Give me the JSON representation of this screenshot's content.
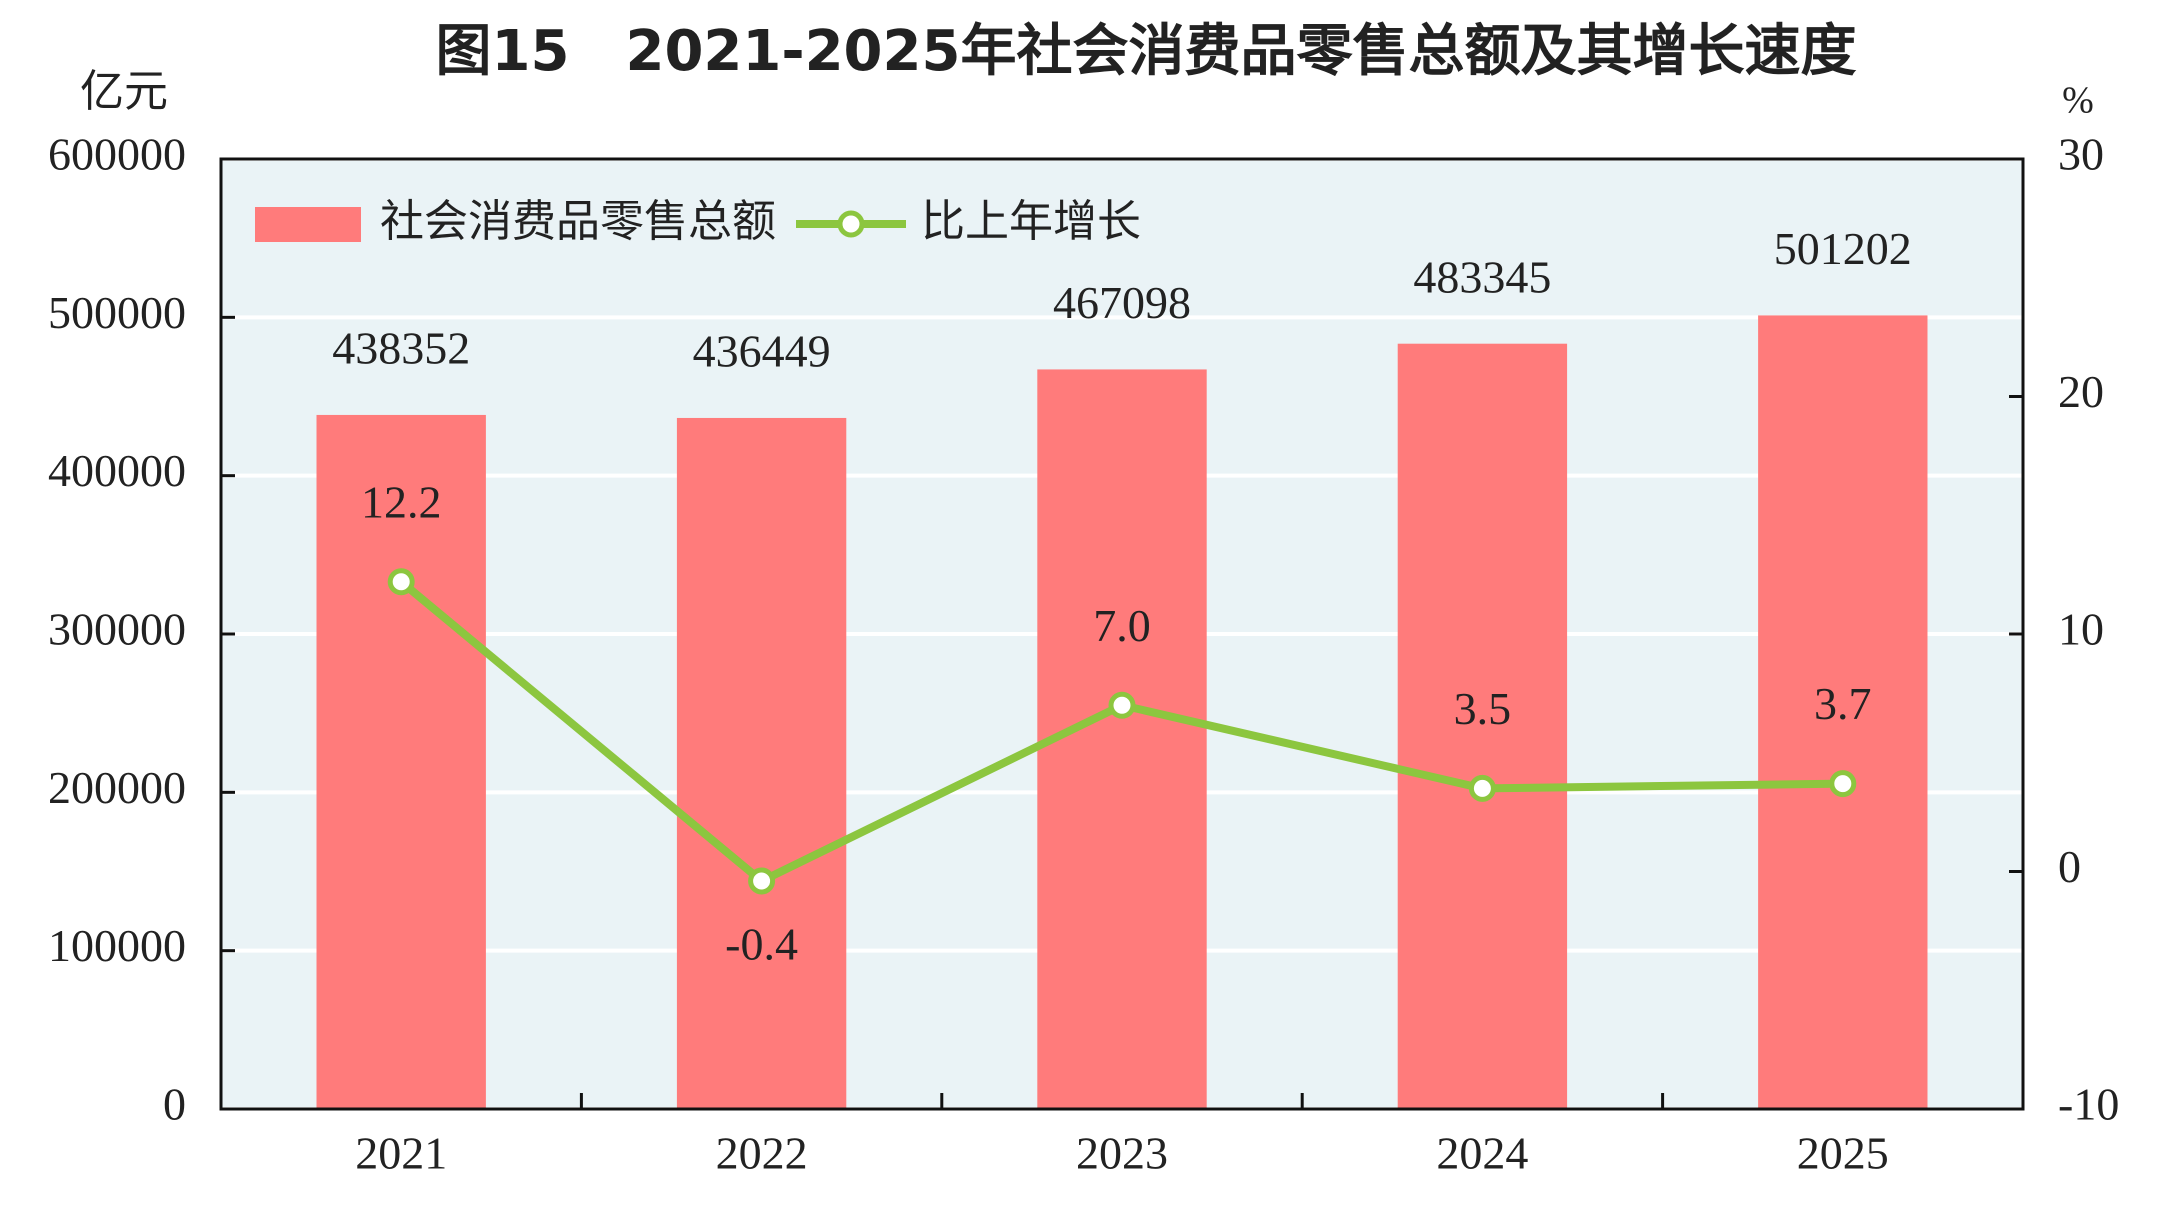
{
  "chart_data": {
    "type": "combo",
    "title": "图15　2021-2025年社会消费品零售总额及其增长速度",
    "y_label": "亿元",
    "y2_label": "%",
    "categories": [
      "2021",
      "2022",
      "2023",
      "2024",
      "2025"
    ],
    "series": [
      {
        "name": "社会消费品零售总额",
        "type": "bar",
        "color": "#ff7b7b",
        "values": [
          438352,
          436449,
          467098,
          483345,
          501202
        ]
      },
      {
        "name": "比上年增长",
        "type": "line",
        "axis": "y2",
        "color": "#8cc63f",
        "values": [
          12.2,
          -0.4,
          7.0,
          3.5,
          3.7
        ],
        "value_labels": [
          "12.2",
          "-0.4",
          "7.0",
          "3.5",
          "3.7"
        ]
      }
    ],
    "ylim": [
      0,
      600000
    ],
    "yticks": [
      0,
      100000,
      200000,
      300000,
      400000,
      500000,
      600000
    ],
    "y2lim": [
      -10,
      30
    ],
    "y2ticks": [
      -10,
      0,
      10,
      20,
      30
    ],
    "grid": true,
    "legend": "top-left"
  }
}
